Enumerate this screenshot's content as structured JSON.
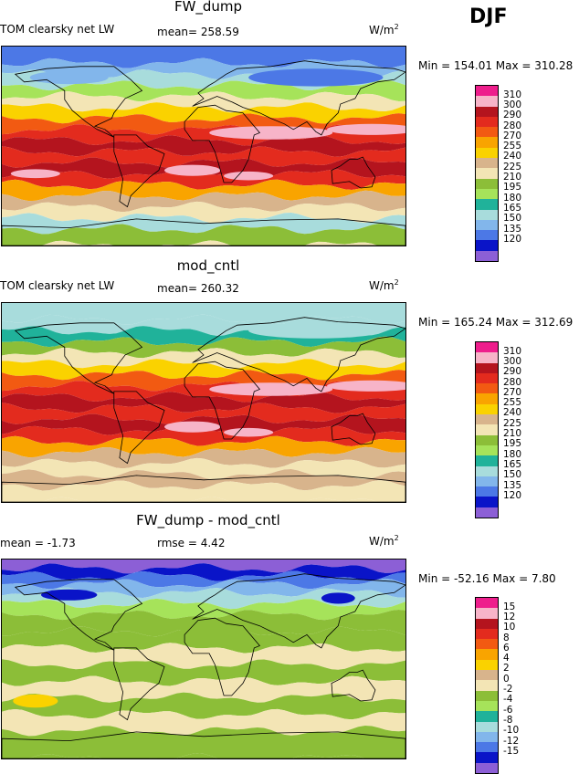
{
  "season": "DJF",
  "variable_label": "TOM clearsky net LW",
  "units_text": "W/m",
  "units_sup": "2",
  "chart_data": [
    {
      "type": "heatmap",
      "title": "FW_dump",
      "variable_label": "TOM clearsky net LW",
      "mean_text": "mean= 258.59",
      "min_max_text": "Min = 154.01 Max = 310.28",
      "min": 154.01,
      "max": 310.28,
      "levels": [
        "310",
        "300",
        "290",
        "280",
        "270",
        "255",
        "240",
        "225",
        "210",
        "195",
        "180",
        "165",
        "150",
        "135",
        "120"
      ],
      "colors": [
        "#ee1e8c",
        "#f7b4c8",
        "#b4141e",
        "#e32b1e",
        "#f25a12",
        "#f9a400",
        "#fad200",
        "#d8b48c",
        "#f3e5b5",
        "#8cbe38",
        "#a6e35a",
        "#20b29a",
        "#a8dcdc",
        "#82b6eb",
        "#4c78e6",
        "#0a14c8",
        "#8c5fd6"
      ],
      "bands": [
        {
          "lat": 90,
          "ci": 14
        },
        {
          "lat": 75,
          "ci": 13
        },
        {
          "lat": 65,
          "ci": 12
        },
        {
          "lat": 55,
          "ci": 10
        },
        {
          "lat": 45,
          "ci": 8
        },
        {
          "lat": 35,
          "ci": 6
        },
        {
          "lat": 25,
          "ci": 4
        },
        {
          "lat": 15,
          "ci": 3
        },
        {
          "lat": 5,
          "ci": 2
        },
        {
          "lat": -5,
          "ci": 3
        },
        {
          "lat": -15,
          "ci": 2
        },
        {
          "lat": -25,
          "ci": 3
        },
        {
          "lat": -35,
          "ci": 5
        },
        {
          "lat": -45,
          "ci": 7
        },
        {
          "lat": -55,
          "ci": 8
        },
        {
          "lat": -65,
          "ci": 12
        },
        {
          "lat": -75,
          "ci": 9
        },
        {
          "lat": -90,
          "ci": 8
        }
      ],
      "blobs": [
        {
          "lon": 60,
          "lat": 12,
          "w": 55,
          "h": 6,
          "ci": 1
        },
        {
          "lon": 150,
          "lat": 15,
          "w": 40,
          "h": 5,
          "ci": 1
        },
        {
          "lon": -10,
          "lat": -22,
          "w": 25,
          "h": 5,
          "ci": 1
        },
        {
          "lon": 40,
          "lat": -27,
          "w": 22,
          "h": 4,
          "ci": 1
        },
        {
          "lon": -150,
          "lat": -25,
          "w": 22,
          "h": 4,
          "ci": 1
        },
        {
          "lon": 100,
          "lat": 62,
          "w": 60,
          "h": 8,
          "ci": 14
        },
        {
          "lon": -120,
          "lat": 62,
          "w": 35,
          "h": 6,
          "ci": 13
        }
      ]
    },
    {
      "type": "heatmap",
      "title": "mod_cntl",
      "variable_label": "TOM clearsky net LW",
      "mean_text": "mean= 260.32",
      "min_max_text": "Min = 165.24 Max = 312.69",
      "min": 165.24,
      "max": 312.69,
      "levels": [
        "310",
        "300",
        "290",
        "280",
        "270",
        "255",
        "240",
        "225",
        "210",
        "195",
        "180",
        "165",
        "150",
        "135",
        "120"
      ],
      "colors": [
        "#ee1e8c",
        "#f7b4c8",
        "#b4141e",
        "#e32b1e",
        "#f25a12",
        "#f9a400",
        "#fad200",
        "#d8b48c",
        "#f3e5b5",
        "#8cbe38",
        "#a6e35a",
        "#20b29a",
        "#a8dcdc",
        "#82b6eb",
        "#4c78e6",
        "#0a14c8",
        "#8c5fd6"
      ],
      "bands": [
        {
          "lat": 90,
          "ci": 12
        },
        {
          "lat": 75,
          "ci": 12
        },
        {
          "lat": 65,
          "ci": 11
        },
        {
          "lat": 55,
          "ci": 9
        },
        {
          "lat": 45,
          "ci": 8
        },
        {
          "lat": 35,
          "ci": 6
        },
        {
          "lat": 25,
          "ci": 4
        },
        {
          "lat": 15,
          "ci": 3
        },
        {
          "lat": 5,
          "ci": 2
        },
        {
          "lat": -5,
          "ci": 3
        },
        {
          "lat": -15,
          "ci": 2
        },
        {
          "lat": -25,
          "ci": 3
        },
        {
          "lat": -35,
          "ci": 5
        },
        {
          "lat": -45,
          "ci": 7
        },
        {
          "lat": -55,
          "ci": 8
        },
        {
          "lat": -65,
          "ci": 7
        },
        {
          "lat": -75,
          "ci": 8
        },
        {
          "lat": -90,
          "ci": 8
        }
      ],
      "blobs": [
        {
          "lon": 60,
          "lat": 12,
          "w": 55,
          "h": 6,
          "ci": 1
        },
        {
          "lon": 150,
          "lat": 15,
          "w": 40,
          "h": 5,
          "ci": 1
        },
        {
          "lon": -10,
          "lat": -22,
          "w": 25,
          "h": 5,
          "ci": 1
        },
        {
          "lon": 40,
          "lat": -27,
          "w": 22,
          "h": 4,
          "ci": 1
        },
        {
          "lon": 100,
          "lat": 65,
          "w": 60,
          "h": 7,
          "ci": 12
        }
      ]
    },
    {
      "type": "heatmap",
      "title": "FW_dump - mod_cntl",
      "mean_text": "mean =   -1.73",
      "rmse_text": "rmse =    4.42",
      "min_max_text": "Min = -52.16 Max =   7.80",
      "min": -52.16,
      "max": 7.8,
      "levels": [
        "15",
        "12",
        "10",
        "8",
        "6",
        "4",
        "2",
        "0",
        "-2",
        "-4",
        "-6",
        "-8",
        "-10",
        "-12",
        "-15"
      ],
      "colors": [
        "#ee1e8c",
        "#f7b4c8",
        "#b4141e",
        "#e32b1e",
        "#f25a12",
        "#f9a400",
        "#fad200",
        "#d8b48c",
        "#f3e5b5",
        "#8cbe38",
        "#a6e35a",
        "#20b29a",
        "#a8dcdc",
        "#82b6eb",
        "#4c78e6",
        "#0a14c8",
        "#8c5fd6"
      ],
      "bands": [
        {
          "lat": 90,
          "ci": 16
        },
        {
          "lat": 82,
          "ci": 15
        },
        {
          "lat": 75,
          "ci": 14
        },
        {
          "lat": 68,
          "ci": 13
        },
        {
          "lat": 60,
          "ci": 12
        },
        {
          "lat": 50,
          "ci": 10
        },
        {
          "lat": 40,
          "ci": 9
        },
        {
          "lat": 25,
          "ci": 9
        },
        {
          "lat": 10,
          "ci": 8
        },
        {
          "lat": -5,
          "ci": 9
        },
        {
          "lat": -20,
          "ci": 8
        },
        {
          "lat": -35,
          "ci": 9
        },
        {
          "lat": -50,
          "ci": 8
        },
        {
          "lat": -65,
          "ci": 9
        },
        {
          "lat": -90,
          "ci": 9
        }
      ],
      "blobs": [
        {
          "lon": -120,
          "lat": 58,
          "w": 25,
          "h": 5,
          "ci": 15
        },
        {
          "lon": 120,
          "lat": 55,
          "w": 15,
          "h": 5,
          "ci": 15
        },
        {
          "lon": -150,
          "lat": -38,
          "w": 20,
          "h": 6,
          "ci": 6
        },
        {
          "lon": 20,
          "lat": 30,
          "w": 50,
          "h": 6,
          "ci": 9
        },
        {
          "lon": -60,
          "lat": -10,
          "w": 30,
          "h": 8,
          "ci": 9
        }
      ]
    }
  ]
}
